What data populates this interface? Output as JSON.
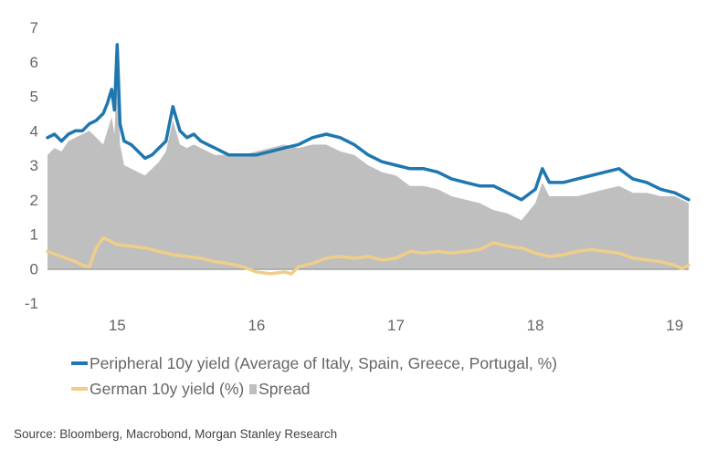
{
  "chart_data": {
    "type": "line",
    "title": "",
    "xlabel": "",
    "ylabel": "",
    "x_ticks": [
      "15",
      "16",
      "17",
      "18",
      "19"
    ],
    "x_tick_positions": [
      2015.0,
      2016.0,
      2017.0,
      2018.0,
      2019.0
    ],
    "xlim": [
      2014.5,
      2019.1
    ],
    "ylim": [
      -1,
      7
    ],
    "y_ticks": [
      -1,
      0,
      1,
      2,
      3,
      4,
      5,
      6,
      7
    ],
    "grid": false,
    "legend_position": "bottom",
    "series": [
      {
        "name": "Peripheral 10y yield (Average of Italy, Spain, Greece, Portugal, %)",
        "kind": "line",
        "color": "#1f77b0",
        "x": [
          2014.5,
          2014.55,
          2014.6,
          2014.65,
          2014.7,
          2014.75,
          2014.8,
          2014.85,
          2014.9,
          2014.93,
          2014.96,
          2014.98,
          2015.0,
          2015.02,
          2015.05,
          2015.1,
          2015.15,
          2015.2,
          2015.25,
          2015.3,
          2015.35,
          2015.4,
          2015.45,
          2015.5,
          2015.55,
          2015.6,
          2015.65,
          2015.7,
          2015.75,
          2015.8,
          2015.9,
          2016.0,
          2016.1,
          2016.2,
          2016.3,
          2016.4,
          2016.5,
          2016.6,
          2016.7,
          2016.8,
          2016.9,
          2017.0,
          2017.1,
          2017.2,
          2017.3,
          2017.4,
          2017.5,
          2017.6,
          2017.7,
          2017.8,
          2017.9,
          2018.0,
          2018.05,
          2018.1,
          2018.2,
          2018.3,
          2018.4,
          2018.5,
          2018.6,
          2018.7,
          2018.8,
          2018.9,
          2019.0,
          2019.1
        ],
        "values": [
          3.8,
          3.9,
          3.7,
          3.9,
          4.0,
          4.0,
          4.2,
          4.3,
          4.5,
          4.8,
          5.2,
          4.6,
          6.5,
          4.2,
          3.7,
          3.6,
          3.4,
          3.2,
          3.3,
          3.5,
          3.7,
          4.7,
          4.0,
          3.8,
          3.9,
          3.7,
          3.6,
          3.5,
          3.4,
          3.3,
          3.3,
          3.3,
          3.4,
          3.5,
          3.6,
          3.8,
          3.9,
          3.8,
          3.6,
          3.3,
          3.1,
          3.0,
          2.9,
          2.9,
          2.8,
          2.6,
          2.5,
          2.4,
          2.4,
          2.2,
          2.0,
          2.3,
          2.9,
          2.5,
          2.5,
          2.6,
          2.7,
          2.8,
          2.9,
          2.6,
          2.5,
          2.3,
          2.2,
          2.0
        ]
      },
      {
        "name": "German 10y yield (%)",
        "kind": "line",
        "color": "#efce8a",
        "x": [
          2014.5,
          2014.6,
          2014.7,
          2014.75,
          2014.8,
          2014.85,
          2014.9,
          2014.95,
          2015.0,
          2015.1,
          2015.2,
          2015.3,
          2015.4,
          2015.5,
          2015.6,
          2015.7,
          2015.8,
          2015.9,
          2016.0,
          2016.1,
          2016.2,
          2016.25,
          2016.3,
          2016.4,
          2016.5,
          2016.6,
          2016.7,
          2016.8,
          2016.9,
          2017.0,
          2017.1,
          2017.2,
          2017.3,
          2017.4,
          2017.5,
          2017.6,
          2017.7,
          2017.8,
          2017.9,
          2018.0,
          2018.1,
          2018.2,
          2018.3,
          2018.4,
          2018.5,
          2018.6,
          2018.7,
          2018.8,
          2018.9,
          2019.0,
          2019.05,
          2019.1
        ],
        "values": [
          0.5,
          0.35,
          0.2,
          0.1,
          0.05,
          0.6,
          0.9,
          0.8,
          0.7,
          0.65,
          0.6,
          0.5,
          0.4,
          0.35,
          0.3,
          0.2,
          0.15,
          0.05,
          -0.1,
          -0.15,
          -0.1,
          -0.15,
          0.05,
          0.15,
          0.3,
          0.35,
          0.3,
          0.35,
          0.25,
          0.3,
          0.5,
          0.45,
          0.5,
          0.45,
          0.5,
          0.55,
          0.75,
          0.65,
          0.6,
          0.45,
          0.35,
          0.4,
          0.5,
          0.55,
          0.5,
          0.45,
          0.3,
          0.25,
          0.2,
          0.1,
          0.0,
          0.1
        ]
      },
      {
        "name": "Spread",
        "kind": "area",
        "color": "#bfbfbf",
        "x": [
          2014.5,
          2014.55,
          2014.6,
          2014.65,
          2014.7,
          2014.75,
          2014.8,
          2014.85,
          2014.9,
          2014.93,
          2014.96,
          2014.98,
          2015.0,
          2015.02,
          2015.05,
          2015.1,
          2015.15,
          2015.2,
          2015.25,
          2015.3,
          2015.35,
          2015.4,
          2015.45,
          2015.5,
          2015.55,
          2015.6,
          2015.65,
          2015.7,
          2015.75,
          2015.8,
          2015.9,
          2016.0,
          2016.1,
          2016.2,
          2016.3,
          2016.4,
          2016.5,
          2016.6,
          2016.7,
          2016.8,
          2016.9,
          2017.0,
          2017.1,
          2017.2,
          2017.3,
          2017.4,
          2017.5,
          2017.6,
          2017.7,
          2017.8,
          2017.9,
          2018.0,
          2018.05,
          2018.1,
          2018.2,
          2018.3,
          2018.4,
          2018.5,
          2018.6,
          2018.7,
          2018.8,
          2018.9,
          2019.0,
          2019.1
        ],
        "values": [
          3.3,
          3.5,
          3.4,
          3.7,
          3.8,
          3.9,
          4.0,
          3.8,
          3.6,
          4.0,
          4.4,
          3.9,
          5.8,
          3.6,
          3.0,
          2.9,
          2.8,
          2.7,
          2.9,
          3.1,
          3.4,
          4.3,
          3.6,
          3.5,
          3.6,
          3.5,
          3.4,
          3.3,
          3.3,
          3.3,
          3.3,
          3.4,
          3.5,
          3.6,
          3.5,
          3.6,
          3.6,
          3.4,
          3.3,
          3.0,
          2.8,
          2.7,
          2.4,
          2.4,
          2.3,
          2.1,
          2.0,
          1.9,
          1.7,
          1.6,
          1.4,
          1.9,
          2.5,
          2.1,
          2.1,
          2.1,
          2.2,
          2.3,
          2.4,
          2.2,
          2.2,
          2.1,
          2.1,
          1.9
        ]
      }
    ]
  },
  "legend": {
    "peripheral_label": "Peripheral 10y yield (Average of Italy, Spain, Greece, Portugal, %)",
    "german_label": "German 10y yield (%)",
    "spread_label": "Spread",
    "peripheral_color": "#1f77b0",
    "german_color": "#efce8a",
    "spread_color": "#bfbfbf"
  },
  "source": "Source: Bloomberg, Macrobond, Morgan Stanley Research"
}
